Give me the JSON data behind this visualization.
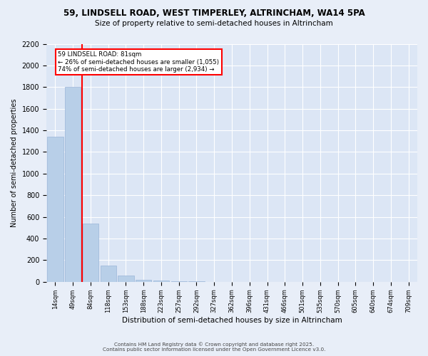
{
  "title": "59, LINDSELL ROAD, WEST TIMPERLEY, ALTRINCHAM, WA14 5PA",
  "subtitle": "Size of property relative to semi-detached houses in Altrincham",
  "xlabel": "Distribution of semi-detached houses by size in Altrincham",
  "ylabel": "Number of semi-detached properties",
  "bins": [
    "14sqm",
    "49sqm",
    "84sqm",
    "118sqm",
    "153sqm",
    "188sqm",
    "223sqm",
    "257sqm",
    "292sqm",
    "327sqm",
    "362sqm",
    "396sqm",
    "431sqm",
    "466sqm",
    "501sqm",
    "535sqm",
    "570sqm",
    "605sqm",
    "640sqm",
    "674sqm",
    "709sqm"
  ],
  "values": [
    1340,
    1800,
    540,
    150,
    55,
    22,
    10,
    5,
    3,
    2,
    1,
    1,
    0,
    0,
    0,
    0,
    0,
    0,
    0,
    0,
    0
  ],
  "bar_color": "#b8cfe8",
  "bar_edge_color": "#9ab5d8",
  "red_line_x": 1.5,
  "annotation_line1": "59 LINDSELL ROAD: 81sqm",
  "annotation_line2": "← 26% of semi-detached houses are smaller (1,055)",
  "annotation_line3": "74% of semi-detached houses are larger (2,934) →",
  "ylim": [
    0,
    2200
  ],
  "yticks": [
    0,
    200,
    400,
    600,
    800,
    1000,
    1200,
    1400,
    1600,
    1800,
    2000,
    2200
  ],
  "background_color": "#e8eef8",
  "plot_background": "#dce6f5",
  "grid_color": "#ffffff",
  "footer_line1": "Contains HM Land Registry data © Crown copyright and database right 2025.",
  "footer_line2": "Contains public sector information licensed under the Open Government Licence v3.0."
}
